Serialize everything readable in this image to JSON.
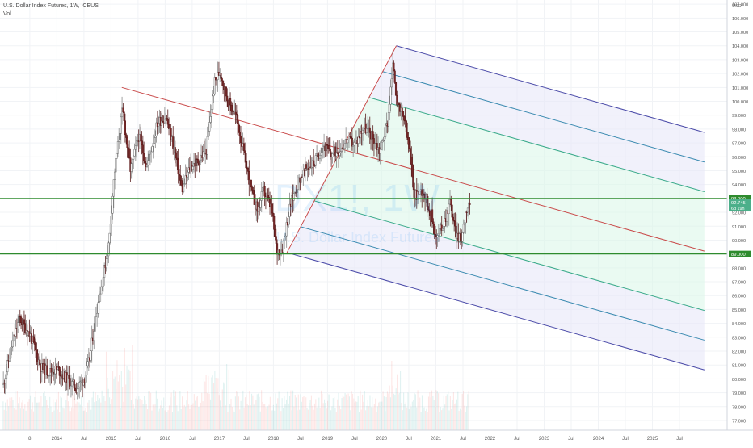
{
  "chart_data": {
    "type": "candlestick",
    "title": "U.S. Dollar Index Futures, 1W, ICEUS",
    "indicator": "Vol",
    "watermark_symbol": "DX1!, 1W",
    "watermark_name": "U.S. Dollar Index Futures",
    "yunit": "USD",
    "ylim": [
      76.3,
      107.3
    ],
    "y_ticks": [
      77,
      78,
      79,
      80,
      81,
      82,
      83,
      84,
      85,
      86,
      87,
      88,
      89,
      90,
      91,
      92,
      93,
      94,
      95,
      96,
      97,
      98,
      99,
      100,
      101,
      102,
      103,
      104,
      105,
      106,
      107
    ],
    "x_ticks": [
      "8",
      "2014",
      "Jul",
      "2015",
      "Jul",
      "2016",
      "Jul",
      "2017",
      "Jul",
      "2018",
      "Jul",
      "2019",
      "Jul",
      "2020",
      "Jul",
      "2021",
      "Jul",
      "2022",
      "Jul",
      "2023",
      "Jul",
      "2024",
      "Jul",
      "2025",
      "Jul"
    ],
    "price_path": [
      {
        "t": 2013.0,
        "v": 79.6
      },
      {
        "t": 2013.15,
        "v": 82.3
      },
      {
        "t": 2013.3,
        "v": 84.4
      },
      {
        "t": 2013.5,
        "v": 83.1
      },
      {
        "t": 2013.7,
        "v": 80.8
      },
      {
        "t": 2013.85,
        "v": 80.5
      },
      {
        "t": 2014.0,
        "v": 80.7
      },
      {
        "t": 2014.2,
        "v": 79.9
      },
      {
        "t": 2014.35,
        "v": 79.3
      },
      {
        "t": 2014.5,
        "v": 80.1
      },
      {
        "t": 2014.6,
        "v": 81.5
      },
      {
        "t": 2014.7,
        "v": 84.5
      },
      {
        "t": 2014.85,
        "v": 87.5
      },
      {
        "t": 2014.95,
        "v": 89.8
      },
      {
        "t": 2015.05,
        "v": 94.8
      },
      {
        "t": 2015.2,
        "v": 99.4
      },
      {
        "t": 2015.35,
        "v": 95.0
      },
      {
        "t": 2015.5,
        "v": 97.5
      },
      {
        "t": 2015.65,
        "v": 95.3
      },
      {
        "t": 2015.85,
        "v": 98.5
      },
      {
        "t": 2016.0,
        "v": 98.9
      },
      {
        "t": 2016.15,
        "v": 96.7
      },
      {
        "t": 2016.3,
        "v": 93.6
      },
      {
        "t": 2016.45,
        "v": 95.3
      },
      {
        "t": 2016.6,
        "v": 95.7
      },
      {
        "t": 2016.75,
        "v": 96.5
      },
      {
        "t": 2016.9,
        "v": 101.3
      },
      {
        "t": 2017.0,
        "v": 102.2
      },
      {
        "t": 2017.15,
        "v": 100.0
      },
      {
        "t": 2017.3,
        "v": 98.9
      },
      {
        "t": 2017.45,
        "v": 96.1
      },
      {
        "t": 2017.6,
        "v": 93.2
      },
      {
        "t": 2017.7,
        "v": 92.1
      },
      {
        "t": 2017.8,
        "v": 93.6
      },
      {
        "t": 2017.95,
        "v": 92.3
      },
      {
        "t": 2018.05,
        "v": 89.2
      },
      {
        "t": 2018.15,
        "v": 89.4
      },
      {
        "t": 2018.3,
        "v": 92.5
      },
      {
        "t": 2018.45,
        "v": 94.3
      },
      {
        "t": 2018.6,
        "v": 95.2
      },
      {
        "t": 2018.75,
        "v": 95.6
      },
      {
        "t": 2018.9,
        "v": 96.9
      },
      {
        "t": 2019.05,
        "v": 96.2
      },
      {
        "t": 2019.2,
        "v": 96.5
      },
      {
        "t": 2019.35,
        "v": 97.2
      },
      {
        "t": 2019.5,
        "v": 96.9
      },
      {
        "t": 2019.65,
        "v": 98.2
      },
      {
        "t": 2019.8,
        "v": 97.6
      },
      {
        "t": 2019.95,
        "v": 96.4
      },
      {
        "t": 2020.1,
        "v": 98.6
      },
      {
        "t": 2020.2,
        "v": 102.8
      },
      {
        "t": 2020.28,
        "v": 99.6
      },
      {
        "t": 2020.4,
        "v": 98.8
      },
      {
        "t": 2020.5,
        "v": 96.4
      },
      {
        "t": 2020.6,
        "v": 93.2
      },
      {
        "t": 2020.75,
        "v": 93.6
      },
      {
        "t": 2020.9,
        "v": 91.9
      },
      {
        "t": 2021.0,
        "v": 90.1
      },
      {
        "t": 2021.15,
        "v": 91.4
      },
      {
        "t": 2021.25,
        "v": 92.8
      },
      {
        "t": 2021.35,
        "v": 90.6
      },
      {
        "t": 2021.45,
        "v": 89.9
      },
      {
        "t": 2021.55,
        "v": 92.3
      },
      {
        "t": 2021.62,
        "v": 92.7
      }
    ],
    "horizontal_levels": [
      {
        "value": 93.0,
        "label": "93.000"
      },
      {
        "value": 89.0,
        "label": "89.000"
      }
    ],
    "last_price_label": "92.745",
    "countdown_label": "6d 19h",
    "pitchfork": {
      "p0": {
        "t": 2015.2,
        "v": 101.0
      },
      "p1": {
        "t": 2018.25,
        "v": 89.1
      },
      "p2": {
        "t": 2020.27,
        "v": 104.0
      },
      "end_t": 2025.96
    },
    "colors": {
      "up": "#26a69a",
      "down": "#ef5350",
      "candle_dark": "#555555",
      "level_line": "#2e8b2e",
      "median": "#c94a4a",
      "inner": "#3aaa8a",
      "middle": "#3a8ab0",
      "outer": "#4a4aa8",
      "fill_inner": "#d8f5e8",
      "fill_outer": "#e6e6f8",
      "axis_text": "#555555"
    }
  }
}
